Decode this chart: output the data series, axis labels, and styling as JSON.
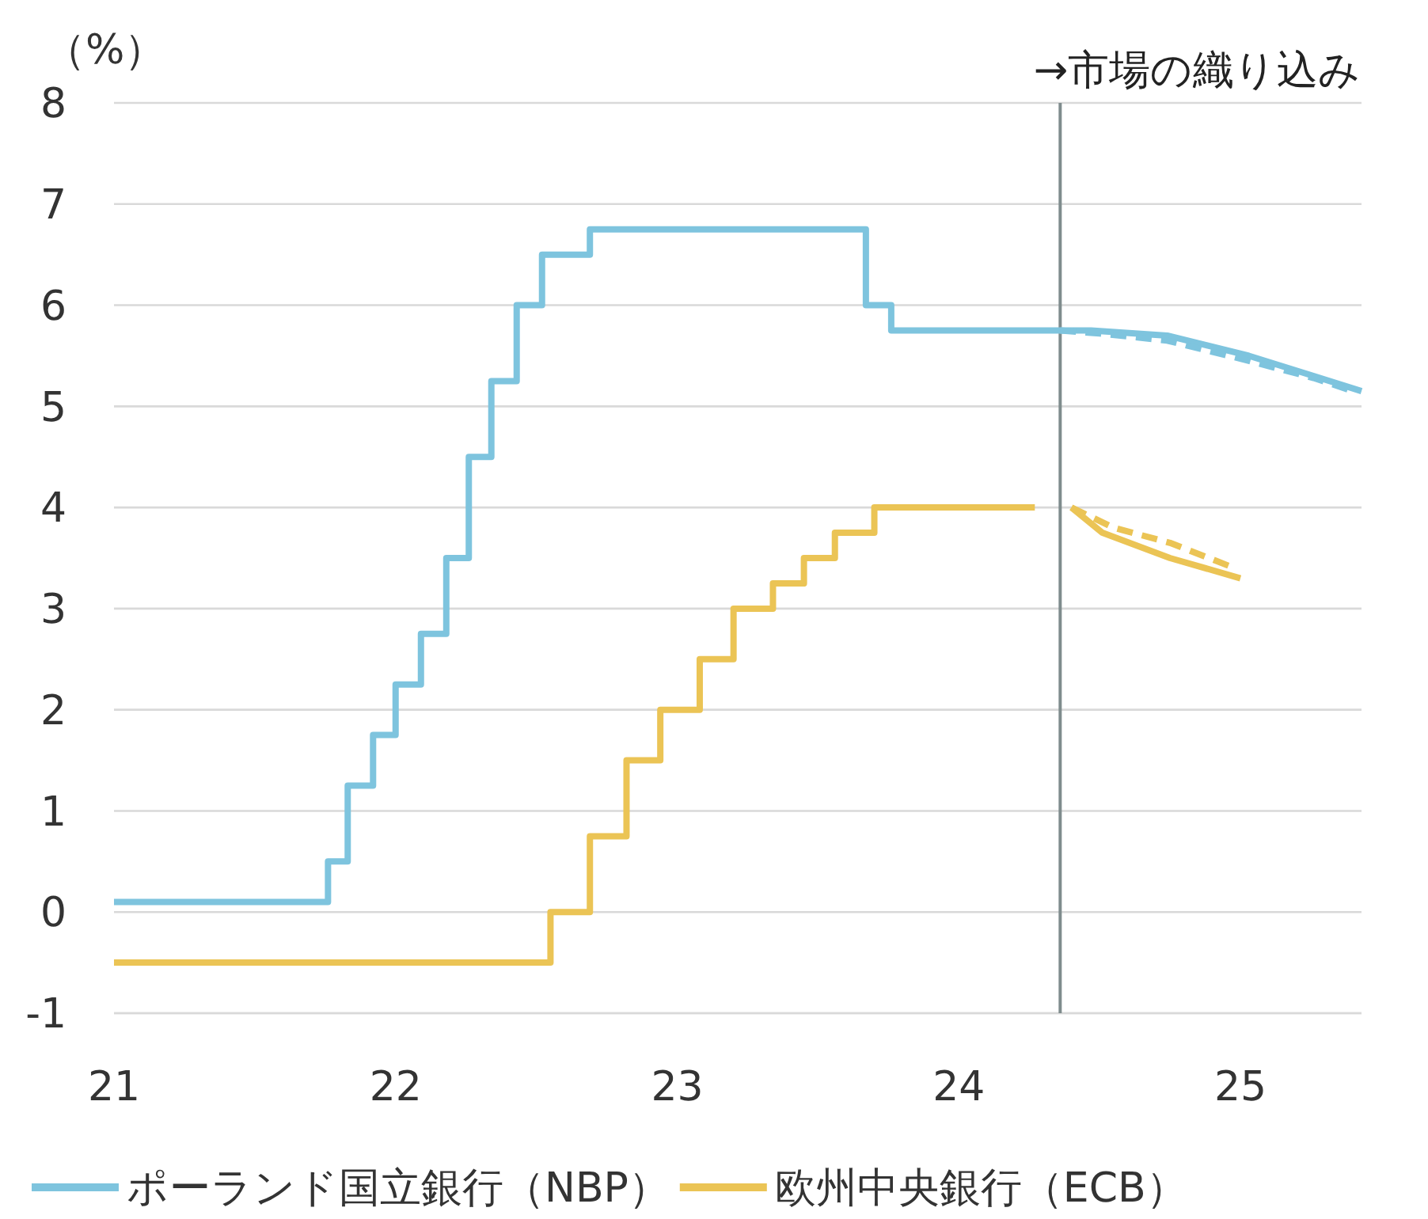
{
  "chart_data": {
    "type": "line",
    "ylabel": "（%）",
    "xlim": [
      21,
      25.43
    ],
    "xticks": [
      21,
      22,
      23,
      24,
      25
    ],
    "ylim": [
      -1,
      8
    ],
    "yticks": [
      -1,
      0,
      1,
      2,
      3,
      4,
      5,
      6,
      7,
      8
    ],
    "grid": "y",
    "legend": "bottom",
    "line_style": "solid",
    "ref_lines": [
      {
        "axis": "x",
        "value": 24.36,
        "label": "→市場の織り込み",
        "color": "#7f8c8d"
      }
    ],
    "series": [
      {
        "name": "ポーランド国立銀行（NBP）",
        "color": "#7ec4de",
        "x": [
          21,
          21.76,
          21.76,
          21.83,
          21.83,
          21.92,
          21.92,
          22,
          22,
          22.09,
          22.09,
          22.18,
          22.18,
          22.26,
          22.26,
          22.34,
          22.34,
          22.43,
          22.43,
          22.52,
          22.52,
          22.69,
          22.69,
          23.67,
          23.67,
          23.76,
          23.76,
          24.36,
          24.47,
          24.74,
          25.03,
          25.26,
          25.43
        ],
        "values": [
          0.1,
          0.1,
          0.5,
          0.5,
          1.25,
          1.25,
          1.75,
          1.75,
          2.25,
          2.25,
          2.75,
          2.75,
          3.5,
          3.5,
          4.5,
          4.5,
          5.25,
          5.25,
          6,
          6,
          6.5,
          6.5,
          6.75,
          6.75,
          6,
          6,
          5.75,
          5.75,
          5.75,
          5.7,
          5.5,
          5.3,
          5.15
        ]
      },
      {
        "line_style": "dashed",
        "color": "#7ec4de",
        "x": [
          24.36,
          24.5,
          24.74,
          25.03,
          25.26,
          25.4
        ],
        "values": [
          5.75,
          5.72,
          5.65,
          5.45,
          5.28,
          5.15
        ]
      },
      {
        "name": "欧州中央銀行（ECB）",
        "type": "step",
        "color": "#ebc455",
        "x": [
          21,
          22.55,
          22.69,
          22.82,
          22.94,
          23.08,
          23.2,
          23.34,
          23.45,
          23.56,
          23.7,
          24.27
        ],
        "values": [
          -0.5,
          0,
          0.75,
          1.5,
          2,
          2.5,
          3,
          3.25,
          3.5,
          3.75,
          4,
          4
        ]
      },
      {
        "color": "#ebc455",
        "x": [
          24.4,
          24.51,
          24.75,
          25
        ],
        "values": [
          4,
          3.75,
          3.5,
          3.3
        ]
      },
      {
        "line_style": "dashed",
        "color": "#ebc455",
        "x": [
          24.4,
          24.55,
          24.75,
          24.98
        ],
        "values": [
          4,
          3.8,
          3.65,
          3.4
        ]
      }
    ]
  }
}
